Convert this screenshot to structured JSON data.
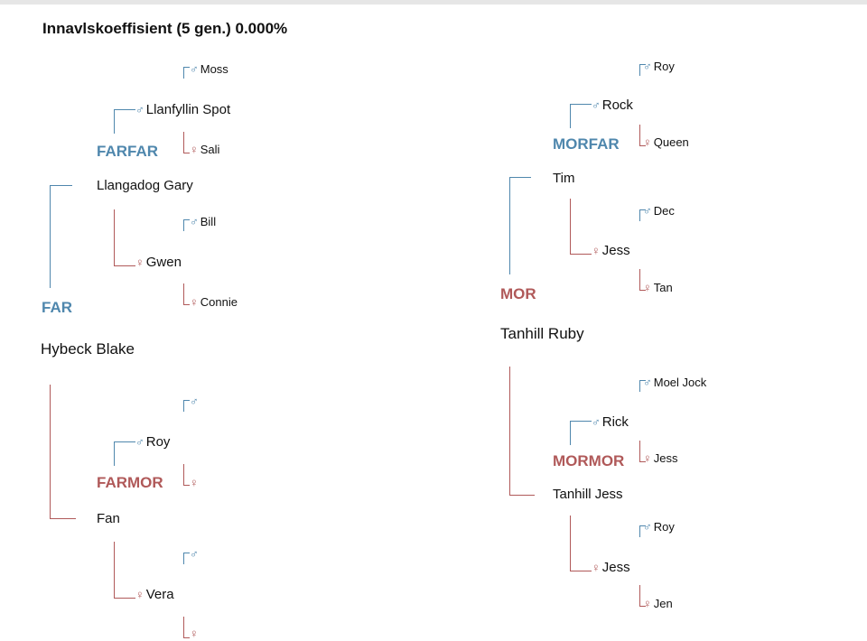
{
  "header": {
    "title_prefix": "Innavlskoeffisient (5 gen.)",
    "coefficient": "0.000%"
  },
  "colors": {
    "male": "#4f87ad",
    "female": "#b05959"
  },
  "symbols": {
    "male": "♂",
    "female": "♀"
  },
  "paternal": {
    "role": "FAR",
    "name": "Hybeck Blake",
    "father": {
      "role": "FARFAR",
      "name": "Llangadog Gary",
      "father": {
        "name": "Llanfyllin Spot",
        "father": "Moss",
        "mother": "Sali"
      },
      "mother": {
        "name": "Gwen",
        "father": "Bill",
        "mother": "Connie"
      }
    },
    "mother": {
      "role": "FARMOR",
      "name": "Fan",
      "father": {
        "name": "Roy",
        "father": "",
        "mother": ""
      },
      "mother": {
        "name": "Vera",
        "father": "",
        "mother": ""
      }
    }
  },
  "maternal": {
    "role": "MOR",
    "name": "Tanhill Ruby",
    "father": {
      "role": "MORFAR",
      "name": "Tim",
      "father": {
        "name": "Rock",
        "father": "Roy",
        "mother": "Queen"
      },
      "mother": {
        "name": "Jess",
        "father": "Dec",
        "mother": "Tan"
      }
    },
    "mother": {
      "role": "MORMOR",
      "name": "Tanhill Jess",
      "father": {
        "name": "Rick",
        "father": "Moel Jock",
        "mother": "Jess"
      },
      "mother": {
        "name": "Jess",
        "father": "Roy",
        "mother": "Jen"
      }
    }
  }
}
